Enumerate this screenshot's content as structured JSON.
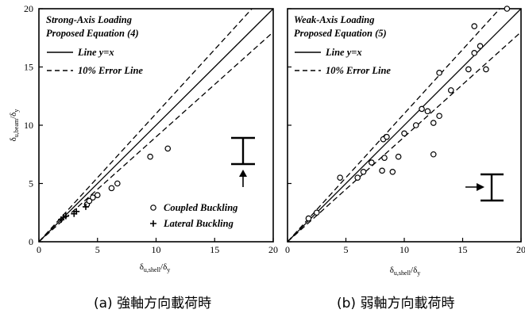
{
  "chart_data": [
    {
      "type": "scatter",
      "panel": "a",
      "xlim": [
        0,
        20
      ],
      "ylim": [
        0,
        20
      ],
      "xticks": [
        "0",
        "5",
        "10",
        "15",
        "20"
      ],
      "yticks": [
        "0",
        "5",
        "10",
        "15",
        "20"
      ],
      "xlabel": {
        "base": "δ",
        "sub": "u,shell",
        "tail": "/δ",
        "tail_sub": "y"
      },
      "ylabel": {
        "base": "δ",
        "sub": "u,beam",
        "tail": "/δ",
        "tail_sub": "y"
      },
      "annotations": [
        "Strong-Axis Loading",
        "Proposed Equation (4)"
      ],
      "legend": [
        {
          "label": "Line y=x",
          "style": "solid"
        },
        {
          "label": "10% Error Line",
          "style": "dashed"
        }
      ],
      "marker_legend": [
        {
          "label": "Coupled Buckling",
          "marker": "circle"
        },
        {
          "label": "Lateral Buckling",
          "marker": "plus"
        }
      ],
      "series": [
        {
          "name": "Coupled Buckling",
          "marker": "circle",
          "points": [
            [
              4.1,
              3.2
            ],
            [
              4.3,
              3.5
            ],
            [
              4.6,
              3.8
            ],
            [
              5.0,
              4.0
            ],
            [
              6.2,
              4.6
            ],
            [
              6.7,
              5.0
            ],
            [
              9.5,
              7.3
            ],
            [
              11.0,
              8.0
            ]
          ]
        },
        {
          "name": "Lateral Buckling",
          "marker": "plus",
          "points": [
            [
              1.9,
              1.9
            ],
            [
              2.1,
              2.1
            ],
            [
              2.3,
              2.2
            ],
            [
              3.0,
              2.4
            ],
            [
              3.2,
              2.6
            ],
            [
              4.0,
              3.0
            ]
          ]
        }
      ]
    },
    {
      "type": "scatter",
      "panel": "b",
      "xlim": [
        0,
        20
      ],
      "ylim": [
        0,
        20
      ],
      "xticks": [
        "0",
        "5",
        "10",
        "15",
        "20"
      ],
      "yticks": [
        "0",
        "5",
        "10",
        "15",
        "20"
      ],
      "xlabel": {
        "base": "δ",
        "sub": "u,shell",
        "tail": "/δ",
        "tail_sub": "y"
      },
      "annotations": [
        "Weak-Axis Loading",
        "Proposed Equation (5)"
      ],
      "legend": [
        {
          "label": "Line y=x",
          "style": "solid"
        },
        {
          "label": "10% Error Line",
          "style": "dashed"
        }
      ],
      "series": [
        {
          "name": "Coupled Buckling",
          "marker": "circle",
          "points": [
            [
              1.8,
              2.0
            ],
            [
              2.5,
              2.5
            ],
            [
              4.5,
              5.5
            ],
            [
              6.0,
              5.5
            ],
            [
              6.5,
              6.0
            ],
            [
              7.2,
              6.8
            ],
            [
              8.2,
              8.8
            ],
            [
              8.3,
              7.2
            ],
            [
              8.5,
              9.0
            ],
            [
              8.1,
              6.1
            ],
            [
              9.0,
              6.0
            ],
            [
              9.5,
              7.3
            ],
            [
              10.0,
              9.3
            ],
            [
              11.0,
              10.0
            ],
            [
              11.5,
              11.4
            ],
            [
              12.0,
              11.2
            ],
            [
              12.5,
              10.2
            ],
            [
              12.5,
              7.5
            ],
            [
              13.0,
              14.5
            ],
            [
              13.0,
              10.8
            ],
            [
              14.0,
              13.0
            ],
            [
              15.5,
              14.8
            ],
            [
              16.0,
              16.2
            ],
            [
              16.0,
              18.5
            ],
            [
              16.5,
              16.8
            ],
            [
              17.0,
              14.8
            ],
            [
              18.8,
              20.0
            ]
          ]
        }
      ]
    }
  ],
  "captions": {
    "a": "(a)  強軸方向載荷時",
    "b": "(b)  弱軸方向載荷時"
  }
}
